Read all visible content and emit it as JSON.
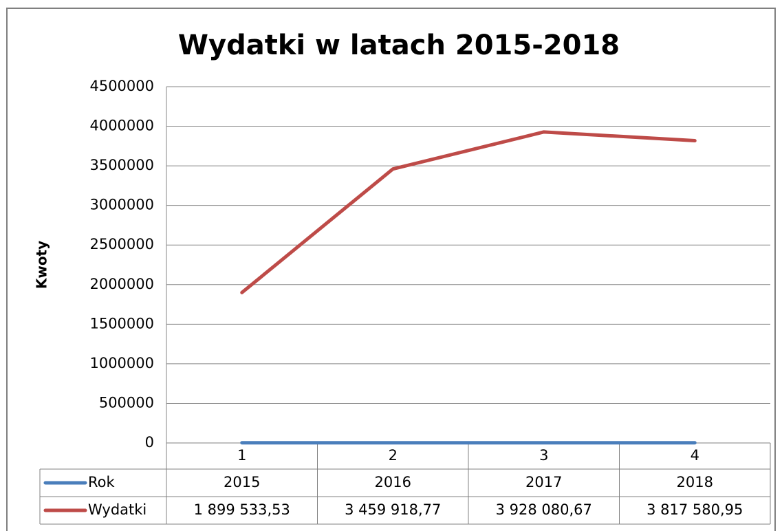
{
  "chart_data": {
    "type": "line",
    "title": "Wydatki w latach 2015-2018",
    "y_label": "Kwoty",
    "categories": [
      "1",
      "2",
      "3",
      "4"
    ],
    "series": [
      {
        "name": "Rok",
        "color": "#4a7ebb",
        "values": [
          2015,
          2016,
          2017,
          2018
        ]
      },
      {
        "name": "Wydatki",
        "color": "#be4b48",
        "values": [
          1899533.53,
          3459918.77,
          3928080.67,
          3817580.95
        ],
        "value_labels": [
          "1 899 533,53",
          "3 459 918,77",
          "3 928 080,67",
          "3 817 580,95"
        ]
      }
    ],
    "ylim": [
      0,
      4500000
    ],
    "yticks": [
      0,
      500000,
      1000000,
      1500000,
      2000000,
      2500000,
      3000000,
      3500000,
      4000000,
      4500000
    ],
    "grid": true
  }
}
